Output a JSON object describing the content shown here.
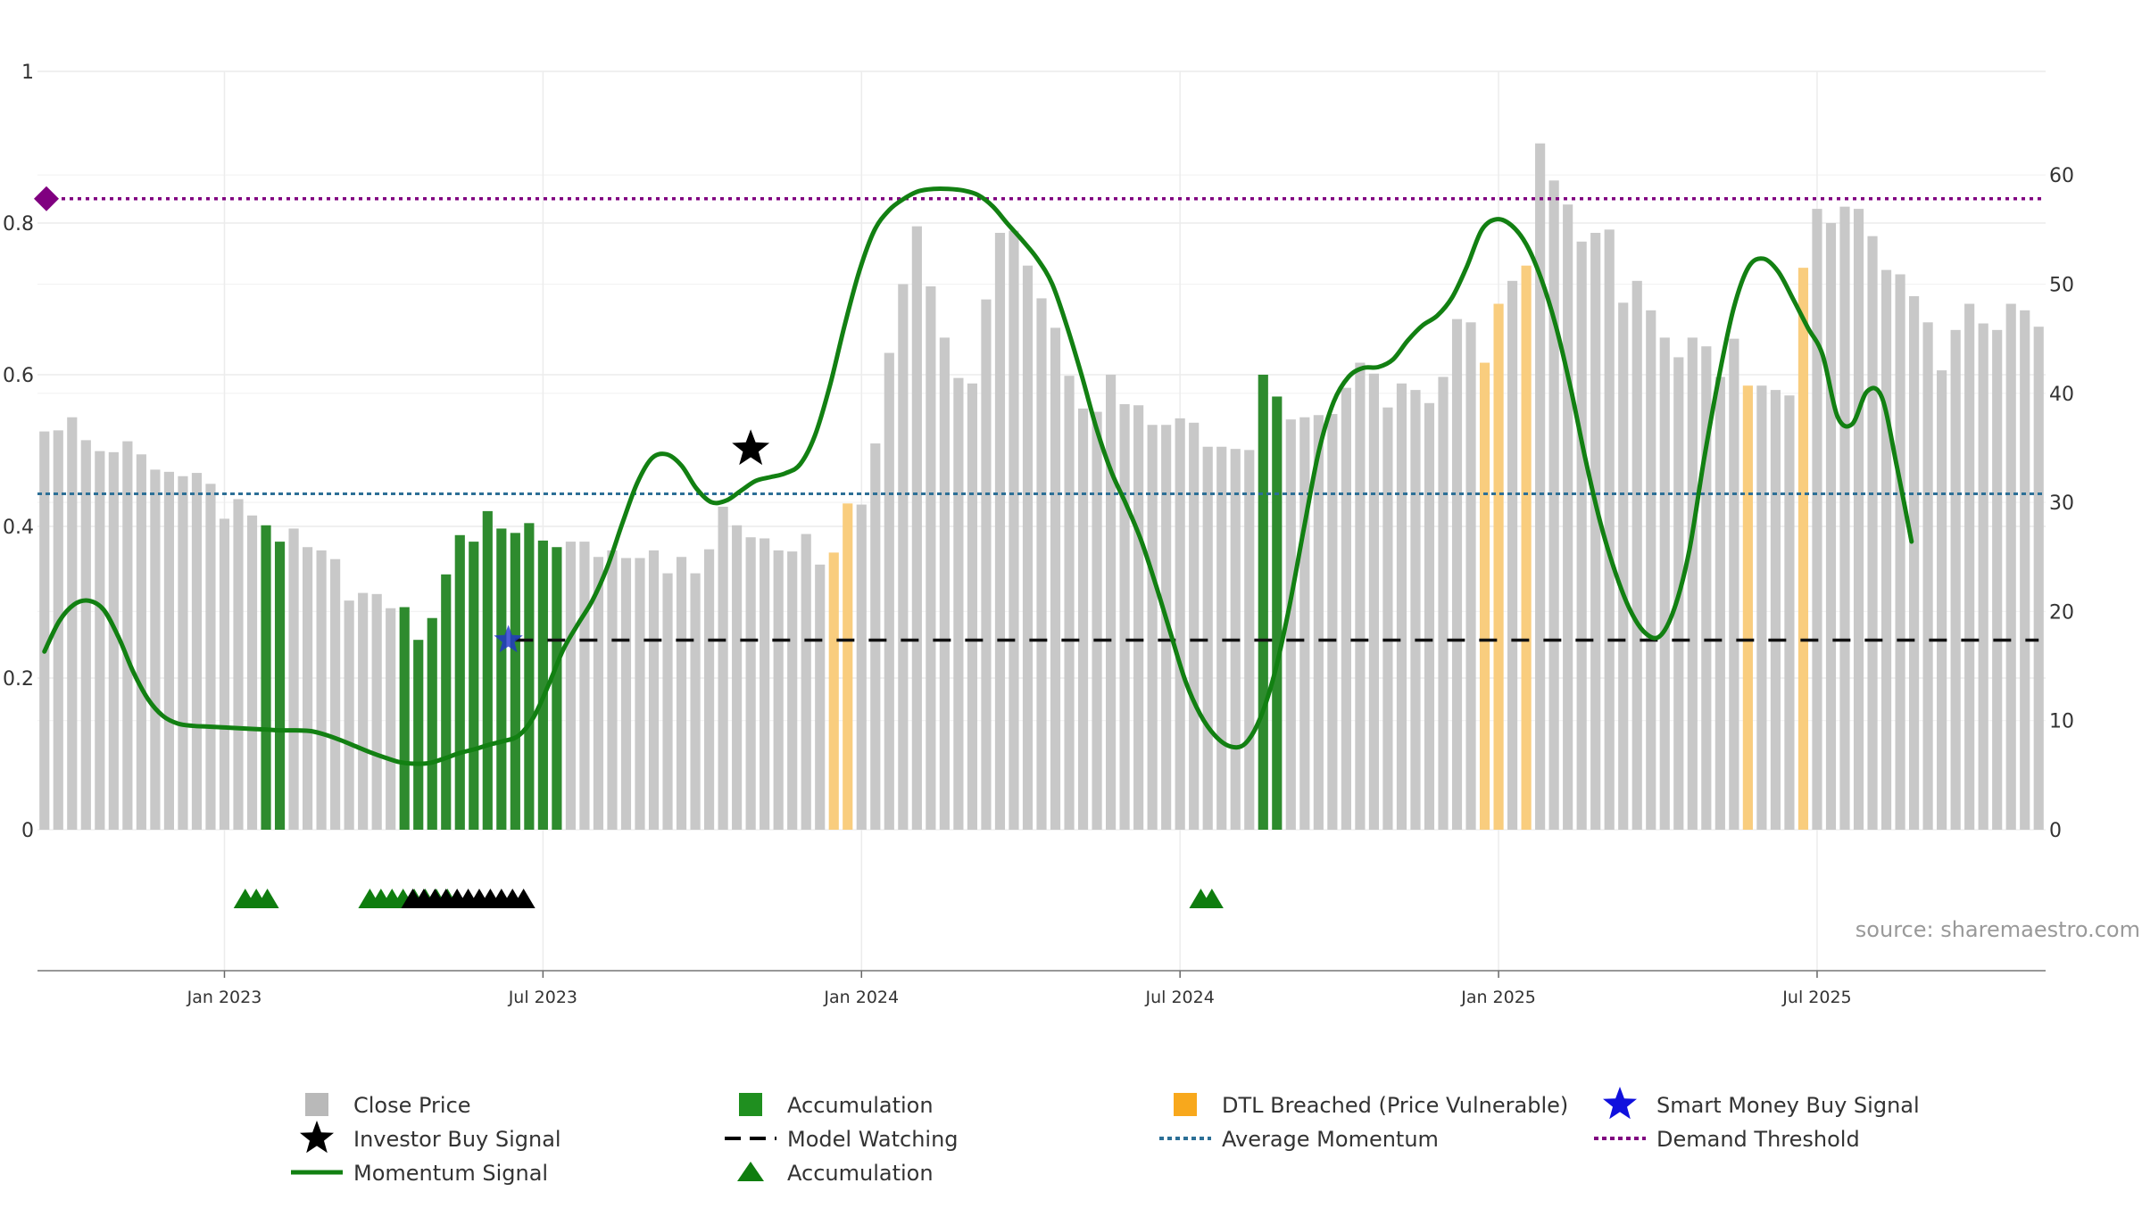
{
  "chart_data": {
    "type": "bar",
    "source_text": "source: sharemaestro.com",
    "x_tick_labels": [
      "Jan 2023",
      "Jul 2023",
      "Jan 2024",
      "Jul 2024",
      "Jan 2025",
      "Jul 2025"
    ],
    "x_tick_indices": [
      13.5,
      36.5,
      59.5,
      82.5,
      105.5,
      128.5
    ],
    "left_axis": {
      "ylim": [
        0,
        1
      ],
      "tick_labels": [
        "0",
        "0.2",
        "0.4",
        "0.6",
        "0.8",
        "1"
      ],
      "ticks": [
        0,
        0.2,
        0.4,
        0.6,
        0.8,
        1
      ]
    },
    "right_axis": {
      "ylim": [
        0,
        69.5
      ],
      "tick_labels": [
        "0",
        "10",
        "20",
        "30",
        "40",
        "50",
        "60"
      ],
      "ticks": [
        0,
        10,
        20,
        30,
        40,
        50,
        60
      ]
    },
    "colors": {
      "close": "#c8c8c8",
      "accumulation": "#2e8b2e",
      "dtl": "#f9cd7e",
      "momentum": "#128012",
      "model_watching": "#111111",
      "average_momentum": "#2c6f96",
      "demand_threshold": "#800080",
      "investor_star": "#000000",
      "smart_money_star": "#2233cc"
    },
    "close_price": [
      36.5,
      36.6,
      37.8,
      35.7,
      34.7,
      34.6,
      35.6,
      34.4,
      33.0,
      32.8,
      32.4,
      32.7,
      31.7,
      28.5,
      30.3,
      28.8,
      27.9,
      26.4,
      27.6,
      25.9,
      25.6,
      24.8,
      21.0,
      21.7,
      21.6,
      20.3,
      20.4,
      17.4,
      19.4,
      23.4,
      27.0,
      26.4,
      29.2,
      27.6,
      27.2,
      28.1,
      26.5,
      25.9,
      26.4,
      26.4,
      25.0,
      25.6,
      24.9,
      24.9,
      25.6,
      23.5,
      25.0,
      23.5,
      25.7,
      29.6,
      27.9,
      26.8,
      26.7,
      25.6,
      25.5,
      27.1,
      24.3,
      25.4,
      29.9,
      29.8,
      35.4,
      43.7,
      50.0,
      55.3,
      49.8,
      45.1,
      41.4,
      40.9,
      48.6,
      54.7,
      54.9,
      51.7,
      48.7,
      46.0,
      41.6,
      38.6,
      38.3,
      41.7,
      39.0,
      38.9,
      37.1,
      37.1,
      37.7,
      37.3,
      35.1,
      35.1,
      34.9,
      34.8,
      41.7,
      39.7,
      37.6,
      37.8,
      38.0,
      38.1,
      40.5,
      42.8,
      41.8,
      38.7,
      40.9,
      40.3,
      39.1,
      41.5,
      46.8,
      46.5,
      42.8,
      48.2,
      50.3,
      51.7,
      62.9,
      59.5,
      57.3,
      53.9,
      54.7,
      55.0,
      48.3,
      50.3,
      47.6,
      45.1,
      43.3,
      45.1,
      44.3,
      41.5,
      45.0,
      40.7,
      40.7,
      40.3,
      39.8,
      51.5,
      56.9,
      55.6,
      57.1,
      56.9,
      54.4,
      51.3,
      50.9,
      48.9,
      46.5,
      42.1,
      45.8,
      48.2,
      46.4,
      45.8,
      48.2,
      47.6,
      46.1
    ],
    "accumulation_indices": [
      16,
      17,
      26,
      27,
      28,
      29,
      30,
      31,
      32,
      33,
      34,
      35,
      36,
      37,
      88,
      89
    ],
    "dtl_breached_indices": [
      57,
      58,
      104,
      105,
      107,
      123,
      127
    ],
    "momentum_signal_norm": [
      0.235,
      0.275,
      0.297,
      0.302,
      0.29,
      0.254,
      0.208,
      0.172,
      0.15,
      0.14,
      0.137,
      0.136,
      0.135,
      0.134,
      0.133,
      0.132,
      0.131,
      0.131,
      0.13,
      0.125,
      0.118,
      0.11,
      0.102,
      0.095,
      0.089,
      0.087,
      0.088,
      0.094,
      0.101,
      0.106,
      0.112,
      0.117,
      0.124,
      0.148,
      0.19,
      0.237,
      0.271,
      0.303,
      0.347,
      0.404,
      0.457,
      0.49,
      0.495,
      0.48,
      0.45,
      0.432,
      0.434,
      0.447,
      0.46,
      0.465,
      0.47,
      0.482,
      0.52,
      0.585,
      0.665,
      0.737,
      0.79,
      0.817,
      0.832,
      0.842,
      0.845,
      0.845,
      0.843,
      0.837,
      0.822,
      0.799,
      0.777,
      0.753,
      0.72,
      0.664,
      0.599,
      0.529,
      0.472,
      0.429,
      0.382,
      0.323,
      0.259,
      0.196,
      0.152,
      0.124,
      0.11,
      0.113,
      0.145,
      0.205,
      0.293,
      0.398,
      0.499,
      0.564,
      0.597,
      0.609,
      0.61,
      0.62,
      0.645,
      0.665,
      0.678,
      0.702,
      0.743,
      0.791,
      0.805,
      0.797,
      0.772,
      0.727,
      0.664,
      0.582,
      0.488,
      0.405,
      0.34,
      0.29,
      0.26,
      0.255,
      0.292,
      0.368,
      0.489,
      0.597,
      0.688,
      0.742,
      0.753,
      0.736,
      0.7,
      0.662,
      0.626,
      0.545,
      0.535,
      0.578,
      0.57,
      0.48,
      0.38
    ],
    "momentum_signal_indices_start": 0,
    "momentum_signal_indices_step": 1.07,
    "average_momentum_norm": 0.443,
    "demand_threshold_norm": 0.832,
    "model_watching_norm": 0.25,
    "model_watching_from_index": 34,
    "investor_buy_signal": {
      "index": 51,
      "norm": 0.502
    },
    "smart_money_buy_signal": {
      "index": 33.5,
      "norm": 0.25
    },
    "accumulation_green_triangles": [
      14.5,
      15.3,
      16.1,
      23.5,
      24.3,
      25.1,
      25.9,
      26.7,
      27.5,
      28.3,
      29.1,
      83.5,
      84.3
    ],
    "accumulation_black_triangles": [
      26.6,
      27.4,
      28.2,
      29.0,
      29.8,
      30.6,
      31.4,
      32.2,
      33.0,
      33.8,
      34.6
    ],
    "legend": [
      {
        "label": "Close Price",
        "symbol": "square-gray"
      },
      {
        "label": "Accumulation",
        "symbol": "square-green"
      },
      {
        "label": "DTL Breached (Price Vulnerable)",
        "symbol": "square-orange"
      },
      {
        "label": "Smart Money Buy Signal",
        "symbol": "star-blue"
      },
      {
        "label": "Investor Buy Signal",
        "symbol": "star-black"
      },
      {
        "label": "Model Watching",
        "symbol": "dash-black"
      },
      {
        "label": "Average Momentum",
        "symbol": "dot-blue"
      },
      {
        "label": "Demand Threshold",
        "symbol": "dot-purple"
      },
      {
        "label": "Momentum Signal",
        "symbol": "line-green"
      },
      {
        "label": "Accumulation",
        "symbol": "triangle-green"
      }
    ]
  }
}
